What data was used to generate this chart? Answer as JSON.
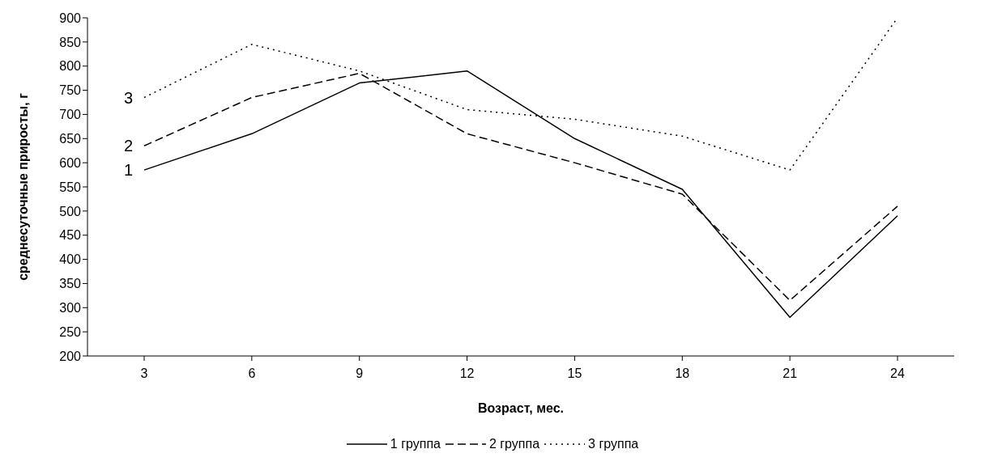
{
  "chart_data": {
    "type": "line",
    "xlabel": "Возраст, мес.",
    "ylabel": "среднесуточные приросты, г",
    "categories": [
      "3",
      "6",
      "9",
      "12",
      "15",
      "18",
      "21",
      "24"
    ],
    "series": [
      {
        "name": "1 группа",
        "color": "#000000",
        "line_style": "solid",
        "values": [
          585,
          660,
          765,
          790,
          650,
          545,
          280,
          490
        ]
      },
      {
        "name": "2 группа",
        "color": "#000000",
        "line_style": "dashed",
        "values": [
          635,
          735,
          785,
          660,
          600,
          535,
          315,
          510
        ]
      },
      {
        "name": "3 группа",
        "color": "#000000",
        "line_style": "dotted",
        "values": [
          735,
          845,
          790,
          710,
          690,
          655,
          585,
          900
        ]
      }
    ],
    "ylim": [
      200,
      900
    ],
    "yticks": [
      200,
      250,
      300,
      350,
      400,
      450,
      500,
      550,
      600,
      650,
      700,
      750,
      800,
      850,
      900
    ],
    "annotations": [
      {
        "text": "1",
        "x": "3",
        "y": 585
      },
      {
        "text": "2",
        "x": "3",
        "y": 635
      },
      {
        "text": "3",
        "x": "3",
        "y": 735
      }
    ],
    "grid": false,
    "legend": "bottom",
    "marker": "none"
  }
}
